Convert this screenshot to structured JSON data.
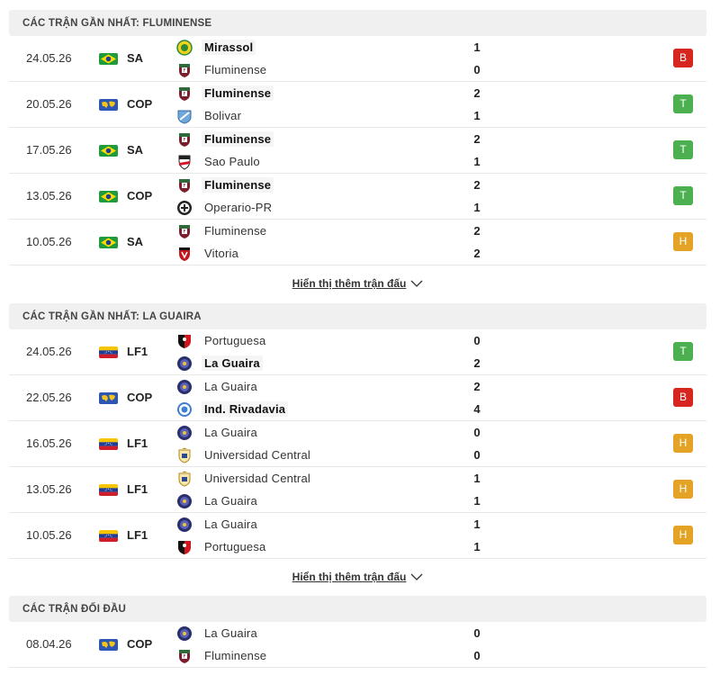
{
  "sections": [
    {
      "title": "CÁC TRẬN GẦN NHẤT: FLUMINENSE",
      "more": "Hiển thị thêm trận đấu",
      "matches": [
        {
          "date": "24.05.26",
          "flag": "brazil",
          "league": "SA",
          "home": "Mirassol",
          "home_logo": "mirassol",
          "away": "Fluminense",
          "away_logo": "fluminense",
          "hs": "1",
          "as": "0",
          "winner": "home",
          "result": "B"
        },
        {
          "date": "20.05.26",
          "flag": "world",
          "league": "COP",
          "home": "Fluminense",
          "home_logo": "fluminense",
          "away": "Bolivar",
          "away_logo": "bolivar",
          "hs": "2",
          "as": "1",
          "winner": "home",
          "result": "T"
        },
        {
          "date": "17.05.26",
          "flag": "brazil",
          "league": "SA",
          "home": "Fluminense",
          "home_logo": "fluminense",
          "away": "Sao Paulo",
          "away_logo": "saopaulo",
          "hs": "2",
          "as": "1",
          "winner": "home",
          "result": "T"
        },
        {
          "date": "13.05.26",
          "flag": "brazil",
          "league": "COP",
          "home": "Fluminense",
          "home_logo": "fluminense",
          "away": "Operario-PR",
          "away_logo": "operario",
          "hs": "2",
          "as": "1",
          "winner": "home",
          "result": "T"
        },
        {
          "date": "10.05.26",
          "flag": "brazil",
          "league": "SA",
          "home": "Fluminense",
          "home_logo": "fluminense",
          "away": "Vitoria",
          "away_logo": "vitoria",
          "hs": "2",
          "as": "2",
          "winner": "none",
          "result": "H"
        }
      ]
    },
    {
      "title": "CÁC TRẬN GẦN NHẤT: LA GUAIRA",
      "more": "Hiển thị thêm trận đấu",
      "matches": [
        {
          "date": "24.05.26",
          "flag": "venezuela",
          "league": "LF1",
          "home": "Portuguesa",
          "home_logo": "portuguesa",
          "away": "La Guaira",
          "away_logo": "laguaira",
          "hs": "0",
          "as": "2",
          "winner": "away",
          "result": "T"
        },
        {
          "date": "22.05.26",
          "flag": "world",
          "league": "COP",
          "home": "La Guaira",
          "home_logo": "laguaira",
          "away": "Ind. Rivadavia",
          "away_logo": "rivadavia",
          "hs": "2",
          "as": "4",
          "winner": "away",
          "result": "B"
        },
        {
          "date": "16.05.26",
          "flag": "venezuela",
          "league": "LF1",
          "home": "La Guaira",
          "home_logo": "laguaira",
          "away": "Universidad Central",
          "away_logo": "ucv",
          "hs": "0",
          "as": "0",
          "winner": "none",
          "result": "H"
        },
        {
          "date": "13.05.26",
          "flag": "venezuela",
          "league": "LF1",
          "home": "Universidad Central",
          "home_logo": "ucv",
          "away": "La Guaira",
          "away_logo": "laguaira",
          "hs": "1",
          "as": "1",
          "winner": "none",
          "result": "H"
        },
        {
          "date": "10.05.26",
          "flag": "venezuela",
          "league": "LF1",
          "home": "La Guaira",
          "home_logo": "laguaira",
          "away": "Portuguesa",
          "away_logo": "portuguesa",
          "hs": "1",
          "as": "1",
          "winner": "none",
          "result": "H"
        }
      ]
    },
    {
      "title": "CÁC TRẬN ĐỐI ĐẦU",
      "matches": [
        {
          "date": "08.04.26",
          "flag": "world",
          "league": "COP",
          "home": "La Guaira",
          "home_logo": "laguaira",
          "away": "Fluminense",
          "away_logo": "fluminense",
          "hs": "0",
          "as": "0",
          "winner": "none",
          "result": ""
        }
      ]
    }
  ]
}
